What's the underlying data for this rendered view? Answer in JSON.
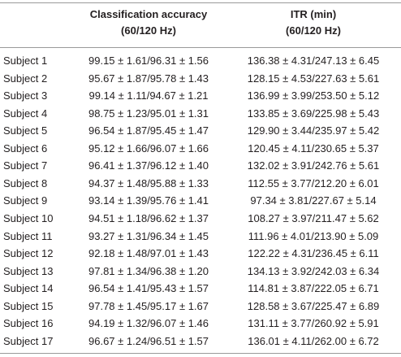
{
  "table": {
    "header": [
      {
        "title": "Classification accuracy",
        "subtitle": "(60/120 Hz)"
      },
      {
        "title": "ITR (min)",
        "subtitle": "(60/120 Hz)"
      }
    ],
    "rows": [
      [
        "Subject 1",
        "99.15 ± 1.61/96.31 ± 1.56",
        "136.38 ± 4.31/247.13 ± 6.45"
      ],
      [
        "Subject 2",
        "95.67 ± 1.87/95.78 ± 1.43",
        "128.15 ± 4.53/227.63 ± 5.61"
      ],
      [
        "Subject 3",
        "99.14 ± 1.11/94.67 ± 1.21",
        "136.99 ± 3.99/253.50 ± 5.12"
      ],
      [
        "Subject 4",
        "98.75 ± 1.23/95.01 ± 1.31",
        "133.85 ± 3.69/225.98 ± 5.43"
      ],
      [
        "Subject 5",
        "96.54 ± 1.87/95.45 ± 1.47",
        "129.90 ± 3.44/235.97 ± 5.42"
      ],
      [
        "Subject 6",
        "95.12 ± 1.66/96.07 ± 1.66",
        "120.45 ± 4.11/230.65 ± 5.37"
      ],
      [
        "Subject 7",
        "96.41 ± 1.37/96.12 ± 1.40",
        "132.02 ± 3.91/242.76 ± 5.61"
      ],
      [
        "Subject 8",
        "94.37 ± 1.48/95.88 ± 1.33",
        "112.55 ± 3.77/212.20 ± 6.01"
      ],
      [
        "Subject 9",
        "93.14 ± 1.39/95.76 ± 1.41",
        "97.34 ± 3.81/227.67 ± 5.14"
      ],
      [
        "Subject 10",
        "94.51 ± 1.18/96.62 ± 1.37",
        "108.27 ± 3.97/211.47 ± 5.62"
      ],
      [
        "Subject 11",
        "93.27 ± 1.31/96.34 ± 1.45",
        "111.96 ± 4.01/213.90 ± 5.09"
      ],
      [
        "Subject 12",
        "92.18 ± 1.48/97.01 ± 1.43",
        "122.22 ± 4.31/236.45 ± 6.11"
      ],
      [
        "Subject 13",
        "97.81 ± 1.34/96.38 ± 1.20",
        "134.13 ± 3.92/242.03 ± 6.34"
      ],
      [
        "Subject 14",
        "96.54 ± 1.41/95.43 ± 1.57",
        "114.81 ± 3.87/222.05 ± 6.71"
      ],
      [
        "Subject 15",
        "97.78 ± 1.45/95.17 ± 1.67",
        "128.58 ± 3.67/225.47 ± 6.89"
      ],
      [
        "Subject 16",
        "94.19 ± 1.32/96.07 ± 1.46",
        "131.11 ± 3.77/260.92 ± 5.91"
      ],
      [
        "Subject 17",
        "96.67 ± 1.24/96.51 ± 1.57",
        "136.01 ± 4.11/262.00 ± 6.72"
      ]
    ]
  }
}
